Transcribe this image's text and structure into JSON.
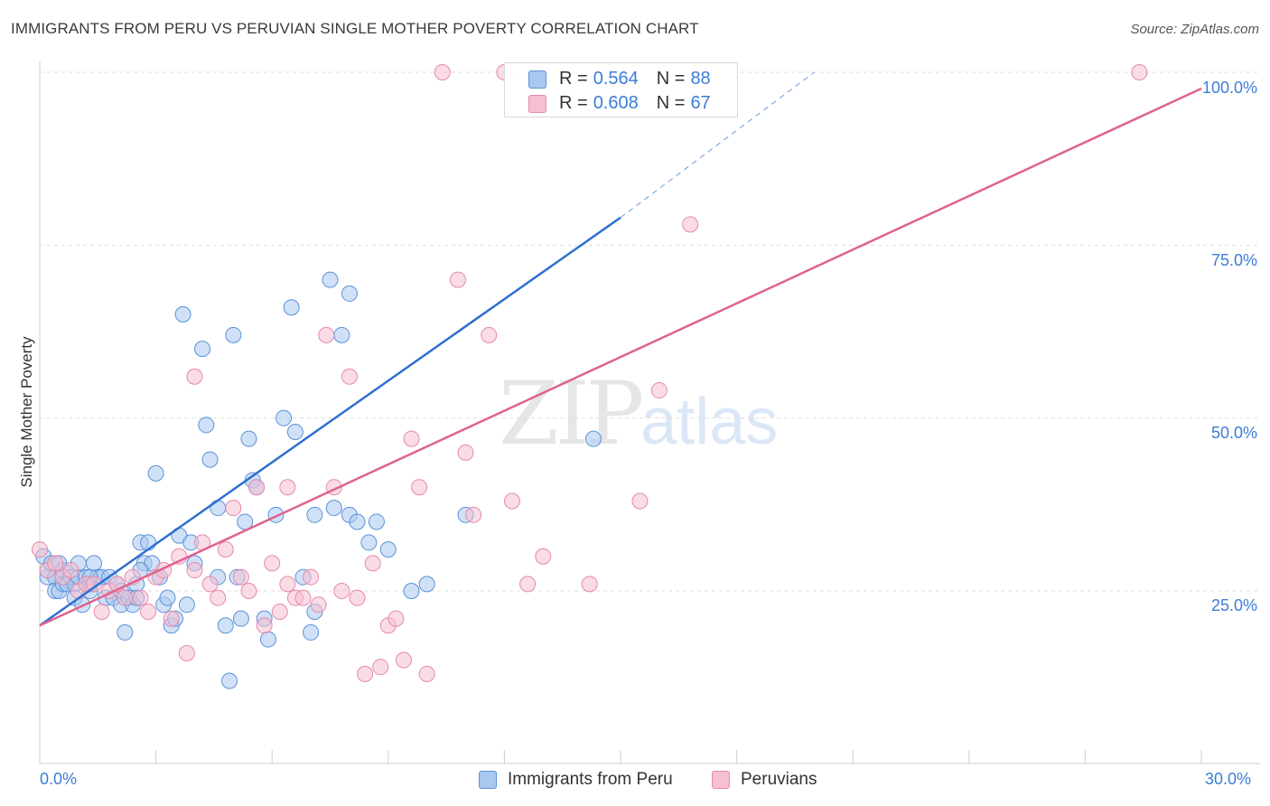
{
  "title": "IMMIGRANTS FROM PERU VS PERUVIAN SINGLE MOTHER POVERTY CORRELATION CHART",
  "source": "Source: ZipAtlas.com",
  "watermark": {
    "zip": "ZIP",
    "atlas": "atlas"
  },
  "colors": {
    "blue_fill": "#a9c8f0",
    "blue_stroke": "#5b92d8",
    "blue_line": "#2e6fd0",
    "pink_fill": "#f6bfd2",
    "pink_stroke": "#e58aaa",
    "pink_line": "#e0628d",
    "tick_text": "#3b7dd8",
    "grid": "#dddddd"
  },
  "stats": [
    {
      "r_label": "R =",
      "r_value": "0.564",
      "n_label": "N =",
      "n_value": "88",
      "series": "blue"
    },
    {
      "r_label": "R =",
      "r_value": "0.608",
      "n_label": "N =",
      "n_value": "67",
      "series": "pink"
    }
  ],
  "legend": [
    {
      "label": "Immigrants from Peru",
      "series": "blue"
    },
    {
      "label": "Peruvians",
      "series": "pink"
    }
  ],
  "axes": {
    "y_title": "Single Mother Poverty",
    "x_min_label": "0.0%",
    "x_max_label": "30.0%",
    "y_ticks": [
      "25.0%",
      "50.0%",
      "75.0%",
      "100.0%"
    ]
  },
  "chart_data": {
    "type": "scatter",
    "title": "IMMIGRANTS FROM PERU VS PERUVIAN SINGLE MOTHER POVERTY CORRELATION CHART",
    "xlabel": "",
    "ylabel": "Single Mother Poverty",
    "xlim": [
      0,
      30
    ],
    "ylim": [
      0,
      100
    ],
    "grid": true,
    "legend_position": "bottom",
    "series": [
      {
        "name": "Immigrants from Peru",
        "color": "#a9c8f0",
        "trend": {
          "x0": 0,
          "y0": 20,
          "x1": 15,
          "y1": 79,
          "dashed_to_x": 20,
          "dashed_to_y": 100
        },
        "points": [
          [
            0.1,
            30
          ],
          [
            0.2,
            27
          ],
          [
            0.2,
            28
          ],
          [
            0.3,
            29
          ],
          [
            0.4,
            27
          ],
          [
            0.4,
            25
          ],
          [
            0.5,
            25
          ],
          [
            0.6,
            26
          ],
          [
            0.6,
            28
          ],
          [
            0.7,
            26
          ],
          [
            0.8,
            27
          ],
          [
            0.9,
            26
          ],
          [
            0.9,
            24
          ],
          [
            1.0,
            27
          ],
          [
            1.0,
            29
          ],
          [
            1.1,
            23
          ],
          [
            1.2,
            27
          ],
          [
            1.3,
            25
          ],
          [
            1.3,
            26
          ],
          [
            1.4,
            29
          ],
          [
            1.5,
            27
          ],
          [
            1.6,
            27
          ],
          [
            1.7,
            24
          ],
          [
            1.8,
            27
          ],
          [
            1.9,
            24
          ],
          [
            2.0,
            26
          ],
          [
            2.1,
            23
          ],
          [
            2.1,
            25
          ],
          [
            2.2,
            19
          ],
          [
            2.3,
            24
          ],
          [
            2.4,
            23
          ],
          [
            2.5,
            26
          ],
          [
            2.6,
            32
          ],
          [
            2.7,
            29
          ],
          [
            2.8,
            32
          ],
          [
            2.9,
            29
          ],
          [
            2.6,
            28
          ],
          [
            3.0,
            42
          ],
          [
            3.1,
            27
          ],
          [
            3.2,
            23
          ],
          [
            3.3,
            24
          ],
          [
            3.4,
            20
          ],
          [
            3.5,
            21
          ],
          [
            3.6,
            33
          ],
          [
            3.7,
            65
          ],
          [
            3.8,
            23
          ],
          [
            3.9,
            32
          ],
          [
            4.0,
            29
          ],
          [
            4.2,
            60
          ],
          [
            4.3,
            49
          ],
          [
            4.4,
            44
          ],
          [
            4.6,
            37
          ],
          [
            4.8,
            20
          ],
          [
            4.9,
            12
          ],
          [
            5.0,
            62
          ],
          [
            5.1,
            27
          ],
          [
            5.2,
            21
          ],
          [
            5.3,
            35
          ],
          [
            5.4,
            47
          ],
          [
            5.5,
            41
          ],
          [
            5.6,
            40
          ],
          [
            5.8,
            21
          ],
          [
            5.9,
            18
          ],
          [
            6.1,
            36
          ],
          [
            6.3,
            50
          ],
          [
            6.5,
            66
          ],
          [
            6.6,
            48
          ],
          [
            6.8,
            27
          ],
          [
            7.0,
            19
          ],
          [
            7.1,
            36
          ],
          [
            7.1,
            22
          ],
          [
            7.5,
            70
          ],
          [
            7.8,
            62
          ],
          [
            8.0,
            68
          ],
          [
            8.0,
            36
          ],
          [
            7.6,
            37
          ],
          [
            8.2,
            35
          ],
          [
            8.7,
            35
          ],
          [
            9.0,
            31
          ],
          [
            9.6,
            25
          ],
          [
            8.5,
            32
          ],
          [
            10.0,
            26
          ],
          [
            11.0,
            36
          ],
          [
            14.3,
            47
          ],
          [
            1.3,
            27
          ],
          [
            2.5,
            24
          ],
          [
            0.5,
            29
          ],
          [
            4.6,
            27
          ]
        ]
      },
      {
        "name": "Peruvians",
        "color": "#f6bfd2",
        "trend": {
          "x0": 0,
          "y0": 20,
          "x1": 30,
          "y1": 100
        },
        "points": [
          [
            0.0,
            31
          ],
          [
            0.2,
            28
          ],
          [
            0.4,
            29
          ],
          [
            0.6,
            27
          ],
          [
            0.8,
            28
          ],
          [
            1.0,
            25
          ],
          [
            1.2,
            26
          ],
          [
            1.4,
            26
          ],
          [
            1.6,
            22
          ],
          [
            1.8,
            25
          ],
          [
            2.0,
            26
          ],
          [
            2.2,
            24
          ],
          [
            2.4,
            27
          ],
          [
            2.6,
            24
          ],
          [
            2.8,
            22
          ],
          [
            3.0,
            27
          ],
          [
            3.2,
            28
          ],
          [
            3.4,
            21
          ],
          [
            3.6,
            30
          ],
          [
            3.8,
            16
          ],
          [
            4.0,
            28
          ],
          [
            4.2,
            32
          ],
          [
            4.4,
            26
          ],
          [
            4.6,
            24
          ],
          [
            4.8,
            31
          ],
          [
            5.0,
            37
          ],
          [
            5.2,
            27
          ],
          [
            5.4,
            25
          ],
          [
            5.6,
            40
          ],
          [
            5.8,
            20
          ],
          [
            6.0,
            29
          ],
          [
            6.2,
            22
          ],
          [
            6.4,
            26
          ],
          [
            6.6,
            24
          ],
          [
            6.8,
            24
          ],
          [
            7.0,
            27
          ],
          [
            7.2,
            23
          ],
          [
            7.4,
            62
          ],
          [
            7.6,
            40
          ],
          [
            7.8,
            25
          ],
          [
            8.0,
            56
          ],
          [
            8.2,
            24
          ],
          [
            8.4,
            13
          ],
          [
            8.6,
            29
          ],
          [
            8.8,
            14
          ],
          [
            9.0,
            20
          ],
          [
            9.2,
            21
          ],
          [
            9.4,
            15
          ],
          [
            9.6,
            47
          ],
          [
            9.8,
            40
          ],
          [
            10.0,
            13
          ],
          [
            10.4,
            100
          ],
          [
            10.8,
            70
          ],
          [
            11.0,
            45
          ],
          [
            11.2,
            36
          ],
          [
            11.6,
            62
          ],
          [
            12.0,
            100
          ],
          [
            12.2,
            38
          ],
          [
            12.6,
            26
          ],
          [
            13.0,
            30
          ],
          [
            14.2,
            26
          ],
          [
            15.5,
            38
          ],
          [
            16.0,
            54
          ],
          [
            16.8,
            78
          ],
          [
            28.4,
            100
          ],
          [
            4.0,
            56
          ],
          [
            6.4,
            40
          ]
        ]
      }
    ]
  }
}
